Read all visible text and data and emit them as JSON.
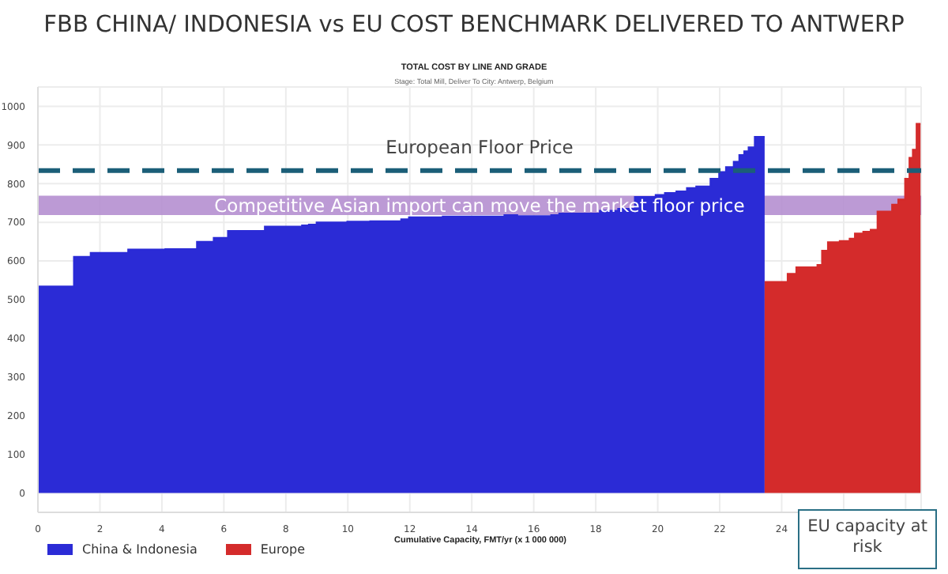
{
  "chart_data": {
    "type": "area",
    "title": "FBB CHINA/ INDONESIA vs EU COST BENCHMARK DELIVERED TO ANTWERP",
    "subtitle": "TOTAL COST BY LINE AND GRADE",
    "xlabel": "Cumulative Capacity, FMT/yr (x 1 000 000)",
    "annotations": [
      "Stage: Total Mill, Deliver To City: Antwerp, Belgium",
      "EU capacity at risk"
    ],
    "series": [
      {
        "name": "China & Indonesia",
        "color": "#2b2bd6",
        "x": [
          0,
          1.16,
          1.16,
          1.7,
          1.7,
          2.91,
          2.91,
          4.11,
          4.11,
          5.13,
          5.13,
          5.67,
          5.67,
          6.13,
          6.13,
          7.32,
          7.32,
          8.52,
          8.52,
          8.74,
          8.74,
          8.99,
          8.99,
          9.98,
          9.98,
          10.72,
          10.72,
          11.72,
          11.72,
          11.97,
          11.97,
          13.06,
          13.06,
          15.05,
          15.05,
          15.47,
          15.47,
          16.56,
          16.56,
          16.82,
          16.82,
          18.13,
          18.13,
          18.72,
          18.72,
          19.26,
          19.26,
          19.93,
          19.93,
          20.23,
          20.23,
          20.6,
          20.6,
          20.94,
          20.94,
          21.24,
          21.24,
          21.7,
          21.7,
          21.98,
          21.98,
          22.2,
          22.2,
          22.45,
          22.45,
          22.63,
          22.63,
          22.79,
          22.79,
          22.93,
          22.93,
          23.13,
          23.13,
          23.45
        ],
        "values": [
          534,
          534,
          611,
          611,
          621,
          621,
          630,
          630,
          631,
          631,
          650,
          650,
          660,
          660,
          678,
          678,
          689,
          689,
          692,
          692,
          694,
          694,
          700,
          700,
          702,
          702,
          703,
          703,
          708,
          708,
          713,
          713,
          715,
          715,
          719,
          719,
          716,
          716,
          719,
          719,
          723,
          723,
          730,
          730,
          735,
          735,
          766,
          766,
          771,
          771,
          776,
          776,
          780,
          780,
          789,
          789,
          793,
          793,
          813,
          813,
          830,
          830,
          843,
          843,
          857,
          857,
          874,
          874,
          884,
          884,
          894,
          894,
          921,
          921
        ]
      },
      {
        "name": "Europe",
        "color": "#d42b2b",
        "x": [
          23.45,
          24.19,
          24.19,
          24.47,
          24.47,
          25.15,
          25.15,
          25.3,
          25.3,
          25.49,
          25.49,
          25.87,
          25.87,
          26.19,
          26.19,
          26.36,
          26.36,
          26.63,
          26.63,
          26.87,
          26.87,
          27.09,
          27.09,
          27.56,
          27.56,
          27.76,
          27.76,
          27.98,
          27.98,
          28.12,
          28.12,
          28.23,
          28.23,
          28.35,
          28.35,
          28.48
        ],
        "values": [
          546,
          546,
          567,
          567,
          584,
          584,
          590,
          590,
          627,
          627,
          649,
          649,
          652,
          652,
          658,
          658,
          671,
          671,
          676,
          676,
          681,
          681,
          728,
          728,
          746,
          746,
          759,
          759,
          813,
          813,
          867,
          867,
          888,
          888,
          955,
          955
        ]
      }
    ],
    "xlim": [
      0,
      28.5
    ],
    "xticks": [
      0,
      2,
      4,
      6,
      8,
      10,
      12,
      14,
      16,
      18,
      20,
      22,
      24,
      {
        "value": 26,
        "label": null
      },
      {
        "value": 28,
        "label": null
      }
    ],
    "ylim": [
      -50,
      1050
    ],
    "yticks": [
      0,
      100,
      200,
      300,
      400,
      500,
      600,
      700,
      800,
      900,
      1000
    ],
    "ref_lines": [
      {
        "axis": "y",
        "value": 834,
        "label": "European Floor Price",
        "color": "#1b5e78",
        "line_style": "dashed"
      }
    ],
    "bands": [
      {
        "axis": "y",
        "from": 719,
        "to": 769,
        "label": "Competitive Asian import can move the market floor price",
        "color": "#b58fd0"
      }
    ],
    "grid": true,
    "legend": "bottom left"
  }
}
